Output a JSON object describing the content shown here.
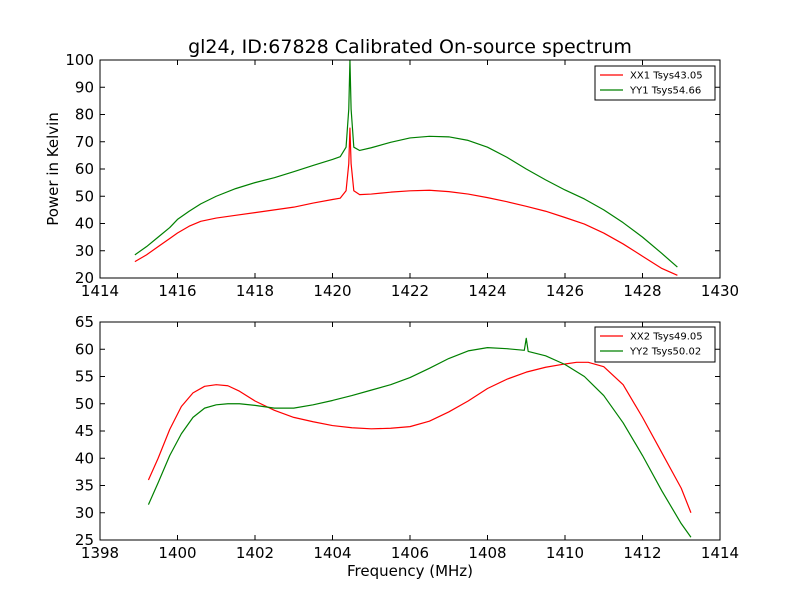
{
  "figure_title": "gl24, ID:67828 Calibrated On-source spectrum",
  "chart_data": [
    {
      "type": "line",
      "title": "gl24, ID:67828 Calibrated On-source spectrum",
      "xlabel": "",
      "ylabel": "Power in Kelvin",
      "xlim": [
        1414,
        1430
      ],
      "ylim": [
        20,
        100
      ],
      "xticks": [
        "1414",
        "1416",
        "1418",
        "1420",
        "1422",
        "1424",
        "1426",
        "1428",
        "1430"
      ],
      "yticks": [
        "20",
        "30",
        "40",
        "50",
        "60",
        "70",
        "80",
        "90",
        "100"
      ],
      "grid": false,
      "legend_position": "top-right",
      "series": [
        {
          "name": "XX1 Tsys43.05",
          "color": "#ff0000",
          "x": [
            1414.9,
            1415.2,
            1415.5,
            1415.8,
            1416.0,
            1416.3,
            1416.6,
            1417.0,
            1417.5,
            1418.0,
            1418.5,
            1419.0,
            1419.5,
            1420.0,
            1420.2,
            1420.35,
            1420.42,
            1420.45,
            1420.48,
            1420.55,
            1420.7,
            1421.0,
            1421.5,
            1422.0,
            1422.5,
            1423.0,
            1423.5,
            1424.0,
            1424.5,
            1425.0,
            1425.5,
            1426.0,
            1426.5,
            1427.0,
            1427.5,
            1428.0,
            1428.5,
            1428.9
          ],
          "values": [
            26,
            28.5,
            31.5,
            34.5,
            36.5,
            39,
            40.8,
            42,
            43,
            44,
            45,
            46,
            47.5,
            48.8,
            49.3,
            52,
            62,
            75,
            62,
            52,
            50.6,
            50.8,
            51.5,
            52,
            52.2,
            51.7,
            50.8,
            49.5,
            48,
            46.3,
            44.5,
            42.2,
            39.8,
            36.5,
            32.5,
            28,
            23.5,
            21
          ]
        },
        {
          "name": "YY1 Tsys54.66",
          "color": "#008000",
          "x": [
            1414.9,
            1415.2,
            1415.5,
            1415.8,
            1416.0,
            1416.3,
            1416.6,
            1417.0,
            1417.5,
            1418.0,
            1418.5,
            1419.0,
            1419.5,
            1420.0,
            1420.2,
            1420.35,
            1420.42,
            1420.45,
            1420.48,
            1420.55,
            1420.7,
            1421.0,
            1421.5,
            1422.0,
            1422.5,
            1423.0,
            1423.5,
            1424.0,
            1424.5,
            1425.0,
            1425.5,
            1426.0,
            1426.5,
            1427.0,
            1427.5,
            1428.0,
            1428.5,
            1428.9
          ],
          "values": [
            28.5,
            31.5,
            35,
            38.5,
            41.5,
            44.5,
            47.2,
            50,
            52.8,
            55,
            56.8,
            59,
            61.3,
            63.5,
            64.5,
            68,
            82,
            100,
            82,
            68,
            66.8,
            67.8,
            69.8,
            71.4,
            72,
            71.8,
            70.5,
            68,
            64.3,
            60,
            56,
            52.3,
            49,
            45,
            40.3,
            35,
            29,
            24
          ]
        }
      ]
    },
    {
      "type": "line",
      "title": "",
      "xlabel": "Frequency (MHz)",
      "ylabel": "",
      "xlim": [
        1398,
        1414
      ],
      "ylim": [
        25,
        65
      ],
      "xticks": [
        "1398",
        "1400",
        "1402",
        "1404",
        "1406",
        "1408",
        "1410",
        "1412",
        "1414"
      ],
      "yticks": [
        "25",
        "30",
        "35",
        "40",
        "45",
        "50",
        "55",
        "60",
        "65"
      ],
      "grid": false,
      "legend_position": "top-right",
      "series": [
        {
          "name": "XX2 Tsys49.05",
          "color": "#ff0000",
          "x": [
            1399.25,
            1399.5,
            1399.8,
            1400.1,
            1400.4,
            1400.7,
            1401.0,
            1401.3,
            1401.6,
            1402.0,
            1402.5,
            1403.0,
            1403.5,
            1404.0,
            1404.5,
            1405.0,
            1405.5,
            1406.0,
            1406.5,
            1407.0,
            1407.5,
            1408.0,
            1408.5,
            1409.0,
            1409.5,
            1410.0,
            1410.3,
            1410.6,
            1411.0,
            1411.5,
            1412.0,
            1412.5,
            1413.0,
            1413.25
          ],
          "values": [
            36,
            40,
            45.3,
            49.5,
            52,
            53.2,
            53.5,
            53.3,
            52.3,
            50.5,
            48.8,
            47.5,
            46.7,
            46,
            45.6,
            45.4,
            45.5,
            45.8,
            46.8,
            48.5,
            50.5,
            52.8,
            54.5,
            55.8,
            56.7,
            57.3,
            57.6,
            57.6,
            56.8,
            53.5,
            47.5,
            41,
            34.5,
            30
          ]
        },
        {
          "name": "YY2 Tsys50.02",
          "color": "#008000",
          "x": [
            1399.25,
            1399.5,
            1399.8,
            1400.1,
            1400.4,
            1400.7,
            1401.0,
            1401.3,
            1401.6,
            1402.0,
            1402.5,
            1403.0,
            1403.5,
            1404.0,
            1404.5,
            1405.0,
            1405.5,
            1406.0,
            1406.5,
            1407.0,
            1407.5,
            1408.0,
            1408.5,
            1408.95,
            1409.0,
            1409.05,
            1409.5,
            1410.0,
            1410.5,
            1411.0,
            1411.5,
            1412.0,
            1412.5,
            1413.0,
            1413.25
          ],
          "values": [
            31.5,
            35.5,
            40.5,
            44.5,
            47.5,
            49.2,
            49.8,
            50,
            50,
            49.7,
            49.2,
            49.2,
            49.8,
            50.6,
            51.5,
            52.5,
            53.5,
            54.8,
            56.5,
            58.3,
            59.7,
            60.3,
            60.1,
            59.8,
            62,
            59.6,
            58.8,
            57.2,
            55,
            51.5,
            46.5,
            40.5,
            34,
            28,
            25.5
          ]
        }
      ]
    }
  ]
}
